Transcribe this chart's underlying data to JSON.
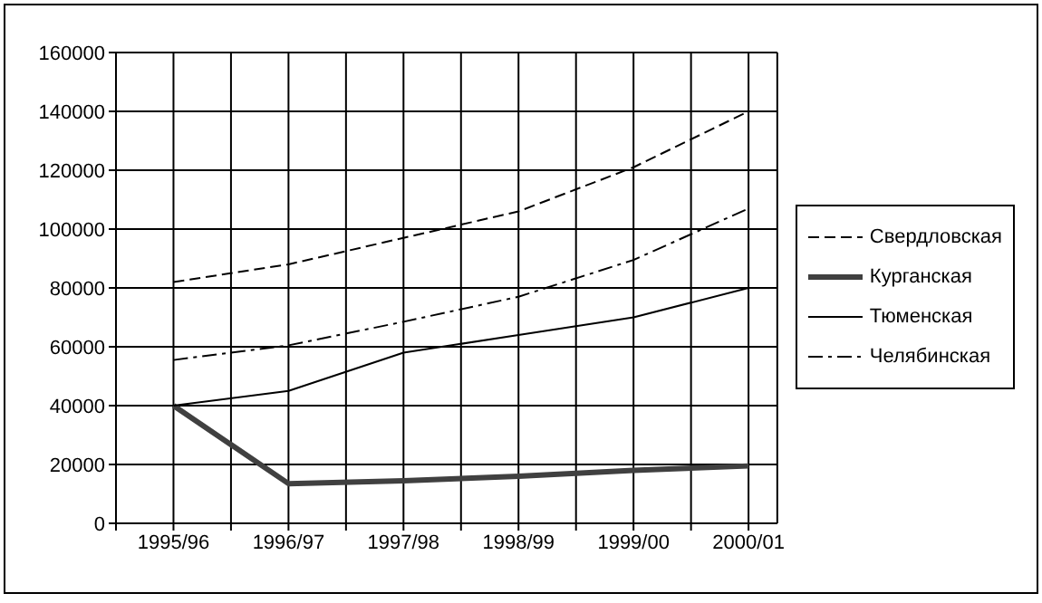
{
  "chart_data": {
    "type": "line",
    "categories": [
      "1995/96",
      "1996/97",
      "1997/98",
      "1998/99",
      "1999/00",
      "2000/01"
    ],
    "series": [
      {
        "name": "Свердловская",
        "color": "#000000",
        "line_style": "dashed",
        "values": [
          82000,
          88000,
          97000,
          106000,
          121000,
          140000
        ]
      },
      {
        "name": "Курганская",
        "color": "#404040",
        "line_style": "solid",
        "values": [
          40000,
          13500,
          14500,
          16000,
          18000,
          19500
        ]
      },
      {
        "name": "Тюменская",
        "color": "#000000",
        "line_style": "solid",
        "values": [
          40000,
          45000,
          58000,
          64000,
          70000,
          80000
        ]
      },
      {
        "name": "Челябинская",
        "color": "#000000",
        "line_style": "dashdot",
        "values": [
          55500,
          60500,
          68500,
          77000,
          89500,
          107000
        ]
      }
    ],
    "ylim": [
      0,
      160000
    ],
    "yticks": [
      0,
      20000,
      40000,
      60000,
      80000,
      100000,
      120000,
      140000,
      160000
    ],
    "grid": true,
    "legend": "right",
    "marker": "none"
  }
}
